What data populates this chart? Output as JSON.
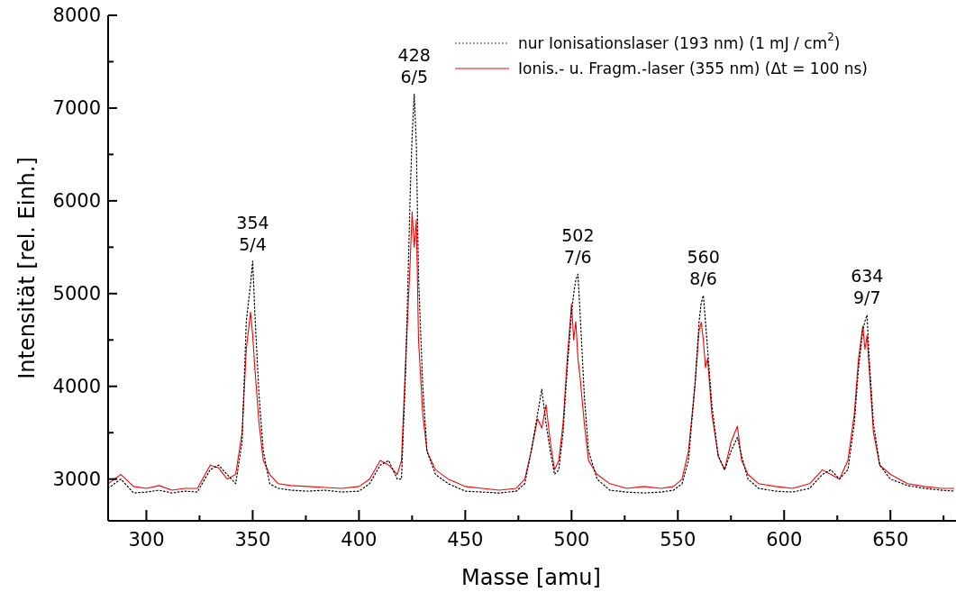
{
  "chart_data": {
    "type": "line",
    "xlabel": "Masse [amu]",
    "ylabel": "Intensität [rel. Einh.]",
    "xlim": [
      282,
      680
    ],
    "ylim": [
      2550,
      8000
    ],
    "xticks": [
      300,
      {
        "value": 325,
        "label": null
      },
      350,
      {
        "value": 375,
        "label": null
      },
      400,
      {
        "value": 425,
        "label": null
      },
      450,
      {
        "value": 475,
        "label": null
      },
      500,
      {
        "value": 525,
        "label": null
      },
      550,
      {
        "value": 575,
        "label": null
      },
      600,
      {
        "value": 625,
        "label": null
      },
      650,
      {
        "value": 675,
        "label": null
      }
    ],
    "yticks": [
      3000,
      {
        "value": 3500,
        "label": null
      },
      4000,
      {
        "value": 4500,
        "label": null
      },
      5000,
      {
        "value": 5500,
        "label": null
      },
      6000,
      {
        "value": 6500,
        "label": null
      },
      7000,
      {
        "value": 7500,
        "label": null
      },
      8000
    ],
    "grid": false,
    "legend": "top right",
    "marker": "none",
    "series": [
      {
        "name": "nur Ionisationslaser (193 nm) (1 mJ / cm$^{2}$)",
        "color": "#000000",
        "line_style": "dotted",
        "x": [
          282,
          288,
          294,
          300,
          306,
          312,
          318,
          324,
          330,
          334,
          338,
          342,
          345,
          347,
          349,
          350,
          351,
          353,
          355,
          358,
          362,
          368,
          376,
          384,
          392,
          400,
          405,
          410,
          414,
          418,
          420,
          422,
          424,
          425,
          426,
          427,
          428,
          430,
          432,
          436,
          442,
          450,
          458,
          466,
          474,
          478,
          481,
          484,
          486,
          488,
          490,
          492,
          494,
          496,
          498,
          500,
          501,
          502,
          503,
          504,
          506,
          508,
          512,
          518,
          526,
          534,
          542,
          548,
          552,
          555,
          558,
          560,
          561,
          562,
          563,
          564,
          566,
          569,
          572,
          575,
          578,
          580,
          583,
          588,
          596,
          604,
          612,
          618,
          622,
          626,
          630,
          633,
          635,
          637,
          638,
          639,
          640,
          642,
          645,
          650,
          658,
          666,
          674,
          680
        ],
        "values": [
          2900,
          3000,
          2850,
          2860,
          2880,
          2850,
          2870,
          2860,
          3100,
          3150,
          3050,
          2950,
          3400,
          4700,
          5100,
          5350,
          4800,
          3900,
          3300,
          2950,
          2900,
          2880,
          2870,
          2880,
          2860,
          2870,
          2950,
          3150,
          3200,
          3000,
          3000,
          4200,
          6000,
          6700,
          7150,
          6600,
          5200,
          4000,
          3300,
          3050,
          2950,
          2870,
          2860,
          2850,
          2870,
          2950,
          3300,
          3700,
          3970,
          3600,
          3300,
          3050,
          3100,
          3500,
          4200,
          4800,
          5000,
          5150,
          5210,
          4800,
          3900,
          3300,
          3000,
          2880,
          2860,
          2850,
          2860,
          2880,
          2950,
          3200,
          4000,
          4700,
          4900,
          4980,
          4700,
          4400,
          3800,
          3250,
          3100,
          3300,
          3450,
          3250,
          3000,
          2900,
          2870,
          2860,
          2900,
          3050,
          3100,
          3000,
          3100,
          3600,
          4200,
          4600,
          4700,
          4770,
          4300,
          3600,
          3150,
          3000,
          2930,
          2900,
          2880,
          2870
        ]
      },
      {
        "name": "Ionis.- u. Fragm.-laser (355 nm) (Δt = 100 ns)",
        "color": "#ff0000",
        "line_style": "solid",
        "x": [
          282,
          288,
          294,
          300,
          306,
          312,
          318,
          324,
          330,
          334,
          338,
          342,
          345,
          347,
          349,
          350,
          351,
          353,
          355,
          358,
          362,
          368,
          376,
          384,
          392,
          400,
          405,
          410,
          414,
          418,
          420,
          422,
          424,
          425,
          426,
          427,
          428,
          430,
          432,
          436,
          442,
          450,
          458,
          466,
          474,
          478,
          481,
          484,
          486,
          488,
          490,
          492,
          494,
          496,
          498,
          500,
          501,
          502,
          503,
          504,
          506,
          508,
          512,
          518,
          526,
          534,
          542,
          548,
          552,
          555,
          558,
          560,
          561,
          562,
          563,
          564,
          566,
          569,
          572,
          575,
          578,
          580,
          583,
          588,
          596,
          604,
          612,
          618,
          622,
          626,
          630,
          633,
          635,
          637,
          638,
          639,
          640,
          642,
          645,
          650,
          658,
          666,
          674,
          680
        ],
        "values": [
          2950,
          3050,
          2920,
          2900,
          2930,
          2880,
          2900,
          2900,
          3150,
          3120,
          3000,
          3050,
          3500,
          4400,
          4800,
          4550,
          4200,
          3600,
          3200,
          3050,
          2950,
          2930,
          2920,
          2910,
          2900,
          2920,
          3000,
          3200,
          3150,
          3050,
          3200,
          4300,
          5300,
          5880,
          5500,
          5800,
          4500,
          3700,
          3300,
          3100,
          3000,
          2920,
          2900,
          2880,
          2900,
          3000,
          3300,
          3650,
          3550,
          3800,
          3400,
          3100,
          3200,
          3600,
          4300,
          4890,
          4500,
          4700,
          4300,
          4100,
          3600,
          3200,
          3050,
          2950,
          2900,
          2920,
          2900,
          2920,
          3000,
          3300,
          4000,
          4600,
          4690,
          4500,
          4200,
          4300,
          3700,
          3250,
          3100,
          3400,
          3570,
          3200,
          3050,
          2950,
          2920,
          2900,
          2950,
          3100,
          3050,
          3000,
          3200,
          3700,
          4300,
          4650,
          4400,
          4550,
          4200,
          3500,
          3150,
          3050,
          2950,
          2920,
          2900,
          2900
        ]
      }
    ],
    "annotations": [
      {
        "text": "354\n5/4",
        "x": 350,
        "y": 5350
      },
      {
        "text": "428\n6/5",
        "x": 426,
        "y": 7150
      },
      {
        "text": "502\n7/6",
        "x": 503,
        "y": 5210
      },
      {
        "text": "560\n8/6",
        "x": 562,
        "y": 4980
      },
      {
        "text": "634\n9/7",
        "x": 639,
        "y": 4770
      }
    ]
  }
}
